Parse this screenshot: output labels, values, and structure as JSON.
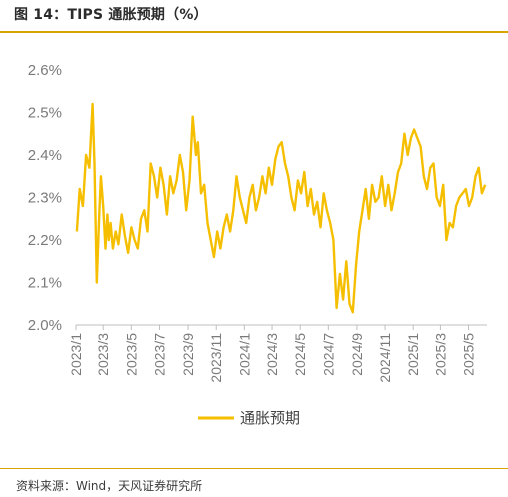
{
  "figure": {
    "title": "图 14：TIPS 通胀预期（%）",
    "source": "资料来源：Wind，天风证券研究所"
  },
  "colors": {
    "series": "#F5BF00",
    "accent_rule": "#D9A400",
    "axis": "#BFBFBF"
  },
  "chart_data": {
    "type": "line",
    "title": "",
    "xlabel": "",
    "ylabel": "",
    "ylim": [
      2.0,
      2.6
    ],
    "yticks": [
      "2.0%",
      "2.1%",
      "2.2%",
      "2.3%",
      "2.4%",
      "2.5%",
      "2.6%"
    ],
    "xticks": [
      "2023/1",
      "2023/3",
      "2023/5",
      "2023/7",
      "2023/9",
      "2023/11",
      "2024/1",
      "2024/3",
      "2024/5",
      "2024/7",
      "2024/9",
      "2024/11",
      "2025/1",
      "2025/3",
      "2025/5"
    ],
    "grid": false,
    "legend": "bottom",
    "series": [
      {
        "name": "通胀预期",
        "x": [
          "2023-01-03",
          "2023-01-09",
          "2023-01-16",
          "2023-01-23",
          "2023-01-30",
          "2023-02-06",
          "2023-02-10",
          "2023-02-15",
          "2023-02-20",
          "2023-02-24",
          "2023-03-01",
          "2023-03-06",
          "2023-03-10",
          "2023-03-13",
          "2023-03-17",
          "2023-03-22",
          "2023-03-28",
          "2023-04-03",
          "2023-04-10",
          "2023-04-17",
          "2023-04-24",
          "2023-05-01",
          "2023-05-08",
          "2023-05-15",
          "2023-05-22",
          "2023-05-29",
          "2023-06-05",
          "2023-06-12",
          "2023-06-19",
          "2023-06-26",
          "2023-07-03",
          "2023-07-10",
          "2023-07-17",
          "2023-07-24",
          "2023-07-31",
          "2023-08-07",
          "2023-08-14",
          "2023-08-21",
          "2023-08-28",
          "2023-09-04",
          "2023-09-11",
          "2023-09-18",
          "2023-09-22",
          "2023-09-29",
          "2023-10-06",
          "2023-10-13",
          "2023-10-20",
          "2023-10-27",
          "2023-11-03",
          "2023-11-10",
          "2023-11-17",
          "2023-11-24",
          "2023-12-01",
          "2023-12-08",
          "2023-12-15",
          "2023-12-22",
          "2023-12-29",
          "2024-01-05",
          "2024-01-12",
          "2024-01-19",
          "2024-01-26",
          "2024-02-02",
          "2024-02-09",
          "2024-02-16",
          "2024-02-23",
          "2024-03-01",
          "2024-03-08",
          "2024-03-15",
          "2024-03-22",
          "2024-03-29",
          "2024-04-05",
          "2024-04-12",
          "2024-04-19",
          "2024-04-26",
          "2024-05-03",
          "2024-05-10",
          "2024-05-17",
          "2024-05-24",
          "2024-05-31",
          "2024-06-07",
          "2024-06-14",
          "2024-06-21",
          "2024-06-28",
          "2024-07-05",
          "2024-07-12",
          "2024-07-19",
          "2024-07-26",
          "2024-08-02",
          "2024-08-05",
          "2024-08-09",
          "2024-08-16",
          "2024-08-23",
          "2024-08-30",
          "2024-09-06",
          "2024-09-13",
          "2024-09-20",
          "2024-09-27",
          "2024-10-04",
          "2024-10-11",
          "2024-10-18",
          "2024-10-25",
          "2024-11-01",
          "2024-11-08",
          "2024-11-15",
          "2024-11-22",
          "2024-11-29",
          "2024-12-06",
          "2024-12-13",
          "2024-12-20",
          "2024-12-27",
          "2025-01-03",
          "2025-01-10",
          "2025-01-17",
          "2025-01-24",
          "2025-01-31",
          "2025-02-07",
          "2025-02-14",
          "2025-02-21",
          "2025-02-28",
          "2025-03-07",
          "2025-03-14",
          "2025-03-21",
          "2025-03-28",
          "2025-04-04",
          "2025-04-11",
          "2025-04-18",
          "2025-04-25",
          "2025-05-02",
          "2025-05-09",
          "2025-05-16",
          "2025-05-23",
          "2025-05-30",
          "2025-06-06"
        ],
        "values": [
          2.22,
          2.32,
          2.28,
          2.4,
          2.37,
          2.52,
          2.38,
          2.1,
          2.25,
          2.35,
          2.28,
          2.18,
          2.26,
          2.2,
          2.24,
          2.18,
          2.22,
          2.19,
          2.26,
          2.21,
          2.17,
          2.23,
          2.2,
          2.18,
          2.25,
          2.27,
          2.22,
          2.38,
          2.35,
          2.3,
          2.37,
          2.33,
          2.26,
          2.35,
          2.31,
          2.34,
          2.4,
          2.36,
          2.27,
          2.34,
          2.49,
          2.4,
          2.43,
          2.31,
          2.33,
          2.24,
          2.2,
          2.16,
          2.22,
          2.18,
          2.23,
          2.26,
          2.22,
          2.27,
          2.35,
          2.3,
          2.27,
          2.24,
          2.3,
          2.33,
          2.27,
          2.3,
          2.35,
          2.31,
          2.37,
          2.33,
          2.39,
          2.42,
          2.43,
          2.38,
          2.35,
          2.3,
          2.27,
          2.34,
          2.31,
          2.36,
          2.28,
          2.32,
          2.26,
          2.29,
          2.23,
          2.31,
          2.27,
          2.24,
          2.2,
          2.04,
          2.12,
          2.06,
          2.1,
          2.15,
          2.05,
          2.03,
          2.14,
          2.22,
          2.27,
          2.32,
          2.25,
          2.33,
          2.29,
          2.3,
          2.35,
          2.28,
          2.33,
          2.27,
          2.31,
          2.36,
          2.38,
          2.45,
          2.4,
          2.44,
          2.46,
          2.44,
          2.42,
          2.35,
          2.32,
          2.37,
          2.38,
          2.3,
          2.28,
          2.33,
          2.2,
          2.24,
          2.23,
          2.28,
          2.3,
          2.31,
          2.32,
          2.28,
          2.3,
          2.35,
          2.37,
          2.31,
          2.33
        ]
      }
    ]
  }
}
